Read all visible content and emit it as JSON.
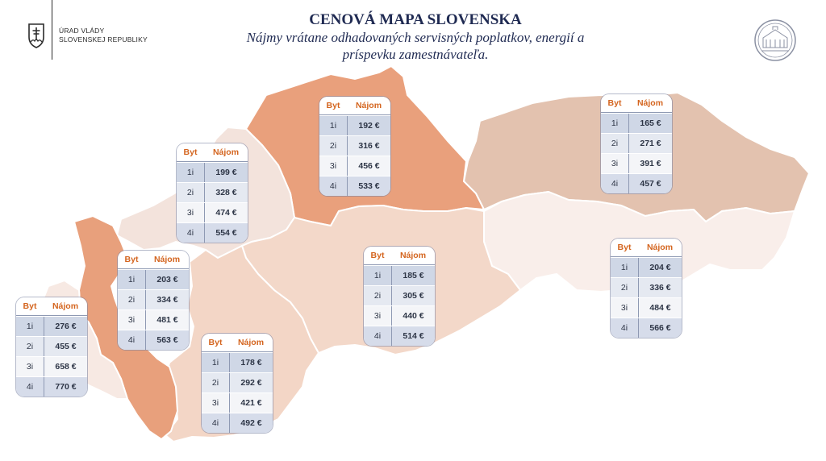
{
  "header": {
    "org_line1": "ÚRAD VLÁDY",
    "org_line2": "SLOVENSKEJ REPUBLIKY",
    "title": "CENOVÁ MAPA SLOVENSKA",
    "subtitle_line1": "Nájmy vrátane odhadovaných servisných poplatkov, energií a",
    "subtitle_line2": "príspevku zamestnávateľa."
  },
  "table_headers": {
    "col1": "Byt",
    "col2": "Nájom"
  },
  "regions": [
    {
      "id": "bratislava",
      "color": "#f7e9e3",
      "rows": [
        [
          "1i",
          "276 €"
        ],
        [
          "2i",
          "455 €"
        ],
        [
          "3i",
          "658 €"
        ],
        [
          "4i",
          "770 €"
        ]
      ]
    },
    {
      "id": "trnava",
      "color": "#e8a07c",
      "rows": [
        [
          "1i",
          "203 €"
        ],
        [
          "2i",
          "334 €"
        ],
        [
          "3i",
          "481 €"
        ],
        [
          "4i",
          "563 €"
        ]
      ]
    },
    {
      "id": "trencin",
      "color": "#f3e3dc",
      "rows": [
        [
          "1i",
          "199 €"
        ],
        [
          "2i",
          "328 €"
        ],
        [
          "3i",
          "474 €"
        ],
        [
          "4i",
          "554 €"
        ]
      ]
    },
    {
      "id": "nitra",
      "color": "#f3d6c6",
      "rows": [
        [
          "1i",
          "178 €"
        ],
        [
          "2i",
          "292 €"
        ],
        [
          "3i",
          "421 €"
        ],
        [
          "4i",
          "492 €"
        ]
      ]
    },
    {
      "id": "zilina",
      "color": "#e9a07c",
      "rows": [
        [
          "1i",
          "192 €"
        ],
        [
          "2i",
          "316 €"
        ],
        [
          "3i",
          "456 €"
        ],
        [
          "4i",
          "533 €"
        ]
      ]
    },
    {
      "id": "banska-bystrica",
      "color": "#f3d8c9",
      "rows": [
        [
          "1i",
          "185 €"
        ],
        [
          "2i",
          "305 €"
        ],
        [
          "3i",
          "440 €"
        ],
        [
          "4i",
          "514 €"
        ]
      ]
    },
    {
      "id": "presov",
      "color": "#e3c2af",
      "rows": [
        [
          "1i",
          "165 €"
        ],
        [
          "2i",
          "271 €"
        ],
        [
          "3i",
          "391 €"
        ],
        [
          "4i",
          "457 €"
        ]
      ]
    },
    {
      "id": "kosice",
      "color": "#f9eeea",
      "rows": [
        [
          "1i",
          "204 €"
        ],
        [
          "2i",
          "336 €"
        ],
        [
          "3i",
          "484 €"
        ],
        [
          "4i",
          "566 €"
        ]
      ]
    }
  ]
}
